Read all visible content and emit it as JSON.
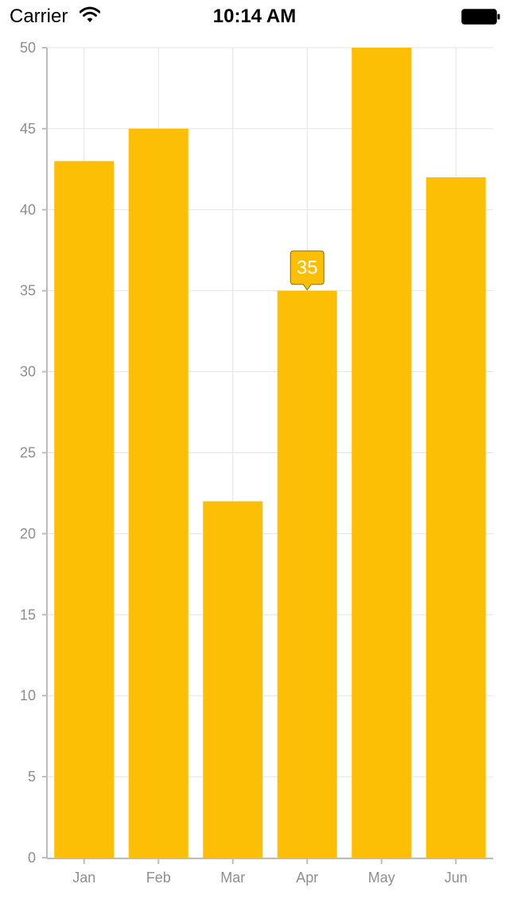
{
  "status_bar": {
    "carrier": "Carrier",
    "time": "10:14 AM"
  },
  "colors": {
    "bar": "#FDBF06",
    "tooltip_border": "#8a6d00",
    "grid": "#e3e3e3",
    "axis": "#bdbdbd",
    "tick_text": "#8e8e93"
  },
  "chart_data": {
    "type": "bar",
    "categories": [
      "Jan",
      "Feb",
      "Mar",
      "Apr",
      "May",
      "Jun"
    ],
    "values": [
      43,
      45,
      22,
      35,
      50,
      42
    ],
    "ylim": [
      0,
      50
    ],
    "yticks": [
      0,
      5,
      10,
      15,
      20,
      25,
      30,
      35,
      40,
      45,
      50
    ],
    "grid": true,
    "tooltip": {
      "category": "Apr",
      "text": "35"
    }
  }
}
